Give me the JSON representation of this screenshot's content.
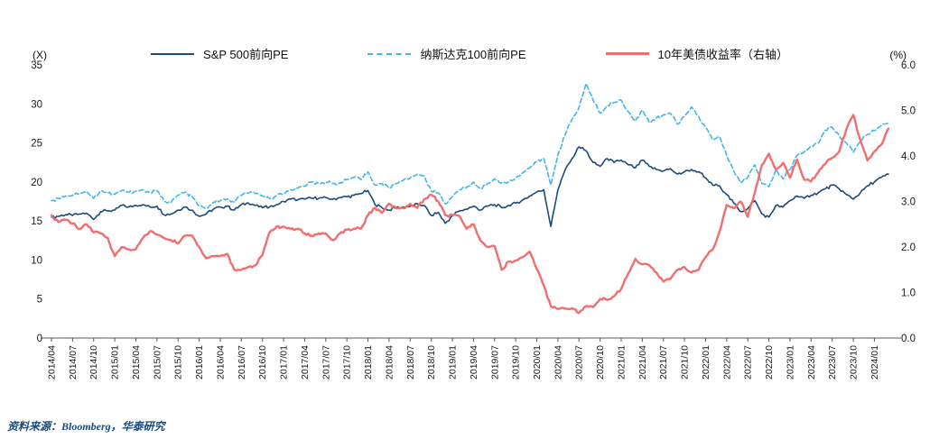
{
  "footer": {
    "source": "资料来源：Bloomberg，华泰研究"
  },
  "chart_data": {
    "type": "line",
    "title": "",
    "grid": false,
    "legend_position": "top",
    "x_start": "2014/04",
    "x_frequency": "monthly",
    "x_tick_labels": [
      "2014/04",
      "2014/07",
      "2014/10",
      "2015/01",
      "2015/04",
      "2015/07",
      "2015/10",
      "2016/01",
      "2016/04",
      "2016/07",
      "2016/10",
      "2017/01",
      "2017/04",
      "2017/07",
      "2017/10",
      "2018/01",
      "2018/04",
      "2018/07",
      "2018/10",
      "2019/01",
      "2019/04",
      "2019/07",
      "2019/10",
      "2020/01",
      "2020/04",
      "2020/07",
      "2020/10",
      "2021/01",
      "2021/04",
      "2021/07",
      "2021/10",
      "2022/01",
      "2022/04",
      "2022/07",
      "2022/10",
      "2023/01",
      "2023/04",
      "2023/07",
      "2023/10",
      "2024/01"
    ],
    "left_axis": {
      "unit": "(X)",
      "min": 0,
      "max": 35,
      "ticks": [
        0,
        5,
        10,
        15,
        20,
        25,
        30,
        35
      ]
    },
    "right_axis": {
      "unit": "(%)",
      "min": 0,
      "max": 6,
      "ticks": [
        "0.0",
        "1.0",
        "2.0",
        "3.0",
        "4.0",
        "5.0",
        "6.0"
      ]
    },
    "series": [
      {
        "name": "S&P 500前向PE",
        "axis": "left",
        "color": "#1b4a7c",
        "style": "solid",
        "width": 1.6,
        "values": [
          15.5,
          15.6,
          15.8,
          15.7,
          15.9,
          16.0,
          15.2,
          16.2,
          16.3,
          16.4,
          17.0,
          16.8,
          17.0,
          17.1,
          16.8,
          16.9,
          15.8,
          15.9,
          16.4,
          16.8,
          16.4,
          15.6,
          15.9,
          16.5,
          16.8,
          16.9,
          16.4,
          17.1,
          17.3,
          17.0,
          16.7,
          16.8,
          17.1,
          17.5,
          17.8,
          17.7,
          17.8,
          17.9,
          17.9,
          18.0,
          17.8,
          18.0,
          18.1,
          18.3,
          18.5,
          18.9,
          17.1,
          16.7,
          16.4,
          16.7,
          16.8,
          16.9,
          17.2,
          17.0,
          15.7,
          16.1,
          14.7,
          15.7,
          16.3,
          16.5,
          16.9,
          16.4,
          16.9,
          17.1,
          16.7,
          17.0,
          17.3,
          17.7,
          18.2,
          18.7,
          19.0,
          14.3,
          19.0,
          21.5,
          23.0,
          24.5,
          24.0,
          22.5,
          22.0,
          23.0,
          22.5,
          22.8,
          22.2,
          21.8,
          22.8,
          22.0,
          21.6,
          21.4,
          21.7,
          21.0,
          21.3,
          21.6,
          21.3,
          20.5,
          19.6,
          19.5,
          18.4,
          17.3,
          16.2,
          16.6,
          17.6,
          15.9,
          15.5,
          17.0,
          16.8,
          17.6,
          18.2,
          17.9,
          18.3,
          18.6,
          19.1,
          19.6,
          19.1,
          18.4,
          17.8,
          18.6,
          19.5,
          20.0,
          20.6,
          21.0
        ]
      },
      {
        "name": "纳斯达克100前向PE",
        "axis": "left",
        "color": "#41b6e8",
        "style": "dashed",
        "width": 1.6,
        "values": [
          17.6,
          17.9,
          18.2,
          18.3,
          18.6,
          18.8,
          17.9,
          18.9,
          18.6,
          18.4,
          18.9,
          18.7,
          18.8,
          19.0,
          18.6,
          18.9,
          17.6,
          17.4,
          18.3,
          18.7,
          18.1,
          16.9,
          16.6,
          17.4,
          17.6,
          17.8,
          17.4,
          18.3,
          18.6,
          18.5,
          18.2,
          17.9,
          18.2,
          18.6,
          19.0,
          19.2,
          19.5,
          20.0,
          19.8,
          20.0,
          19.8,
          19.9,
          20.3,
          20.6,
          20.3,
          21.3,
          19.6,
          19.8,
          19.2,
          19.8,
          20.2,
          20.5,
          21.0,
          20.8,
          18.8,
          18.6,
          17.2,
          18.1,
          19.0,
          19.3,
          20.0,
          19.1,
          19.8,
          20.4,
          19.9,
          20.0,
          20.5,
          21.2,
          21.8,
          22.6,
          23.0,
          19.6,
          23.5,
          26.0,
          28.0,
          29.5,
          32.6,
          30.5,
          28.8,
          29.8,
          30.2,
          30.5,
          29.0,
          27.8,
          29.2,
          27.6,
          28.2,
          28.6,
          28.8,
          27.4,
          28.4,
          29.6,
          28.4,
          27.0,
          25.4,
          25.8,
          23.4,
          21.4,
          19.9,
          20.6,
          22.2,
          19.8,
          19.4,
          21.6,
          20.4,
          21.6,
          23.4,
          23.8,
          24.6,
          25.0,
          26.6,
          27.0,
          25.9,
          25.0,
          23.8,
          25.2,
          26.1,
          26.6,
          27.2,
          27.6
        ]
      },
      {
        "name": "10年美债收益率（右轴）",
        "axis": "right",
        "color": "#f26d6e",
        "style": "solid",
        "width": 2.4,
        "values": [
          2.7,
          2.55,
          2.6,
          2.52,
          2.4,
          2.5,
          2.32,
          2.3,
          2.2,
          1.8,
          2.0,
          1.95,
          1.95,
          2.2,
          2.35,
          2.28,
          2.2,
          2.15,
          2.08,
          2.25,
          2.25,
          2.0,
          1.75,
          1.8,
          1.8,
          1.85,
          1.5,
          1.5,
          1.56,
          1.6,
          1.82,
          2.32,
          2.45,
          2.45,
          2.4,
          2.4,
          2.3,
          2.25,
          2.3,
          2.3,
          2.15,
          2.3,
          2.38,
          2.4,
          2.4,
          2.7,
          2.86,
          2.75,
          2.95,
          2.85,
          2.85,
          2.95,
          2.86,
          3.05,
          3.15,
          3.0,
          2.7,
          2.7,
          2.68,
          2.4,
          2.5,
          2.14,
          2.0,
          2.02,
          1.5,
          1.68,
          1.7,
          1.78,
          1.9,
          1.52,
          1.15,
          0.7,
          0.64,
          0.65,
          0.66,
          0.55,
          0.7,
          0.68,
          0.86,
          0.84,
          0.92,
          1.08,
          1.42,
          1.74,
          1.62,
          1.6,
          1.44,
          1.24,
          1.3,
          1.5,
          1.56,
          1.44,
          1.5,
          1.78,
          1.94,
          2.34,
          2.92,
          2.85,
          3.0,
          2.66,
          3.2,
          3.8,
          4.05,
          3.7,
          3.85,
          3.52,
          3.92,
          3.48,
          3.44,
          3.64,
          3.82,
          3.96,
          4.1,
          4.58,
          4.9,
          4.35,
          3.9,
          4.1,
          4.25,
          4.6
        ]
      }
    ]
  }
}
